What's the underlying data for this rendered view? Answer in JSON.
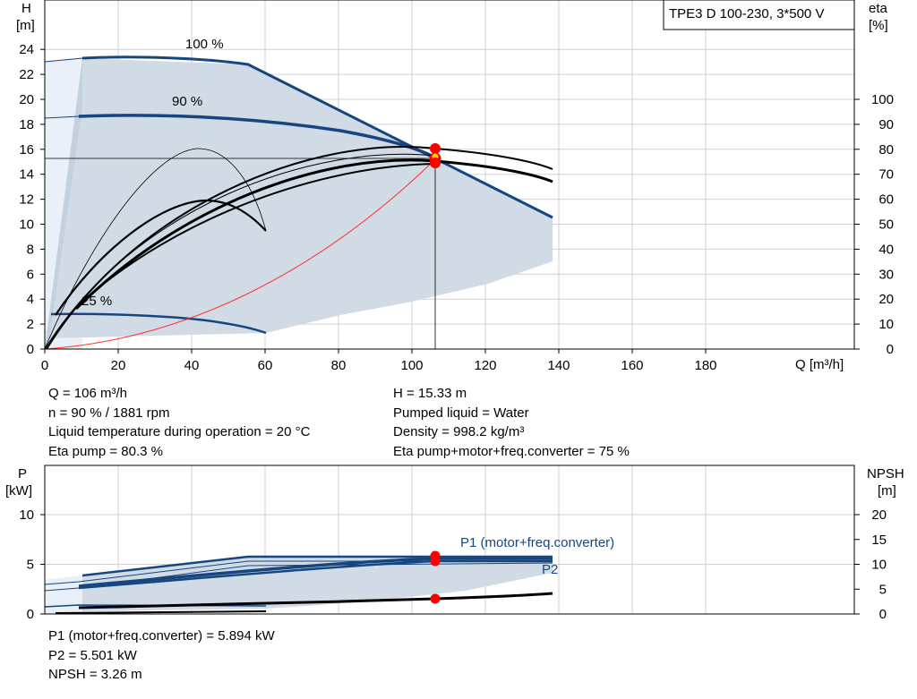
{
  "title_box": "TPE3 D 100-230, 3*500 V",
  "main_chart": {
    "y_label_lines": [
      "H",
      "[m]"
    ],
    "right_label_lines": [
      "eta",
      "[%]"
    ],
    "x_label": "Q [m³/h]",
    "x_ticks": [
      "0",
      "20",
      "40",
      "60",
      "80",
      "100",
      "120",
      "140",
      "160",
      "180"
    ],
    "y_ticks": [
      "0",
      "2",
      "4",
      "6",
      "8",
      "10",
      "12",
      "14",
      "16",
      "18",
      "20",
      "22",
      "24"
    ],
    "eta_ticks": [
      "0",
      "10",
      "20",
      "30",
      "40",
      "50",
      "60",
      "70",
      "80",
      "90",
      "100"
    ],
    "speed_labels": [
      "100 %",
      "90 %",
      "25 %"
    ]
  },
  "power_chart": {
    "y_label_lines": [
      "P",
      "[kW]"
    ],
    "right_label_lines": [
      "NPSH",
      "[m]"
    ],
    "y_ticks": [
      "0",
      "5",
      "10"
    ],
    "npsh_ticks": [
      "0",
      "5",
      "10",
      "15",
      "20"
    ],
    "series_labels": [
      "P1 (motor+freq.converter)",
      "P2"
    ]
  },
  "info_left": [
    "Q = 106 m³/h",
    "n = 90 % / 1881 rpm",
    "Liquid temperature during operation = 20 °C",
    "Eta pump = 80.3 %"
  ],
  "info_right": [
    "H = 15.33 m",
    "Pumped liquid = Water",
    "Density = 998.2 kg/m³",
    "Eta pump+motor+freq.converter = 75 %"
  ],
  "info_bottom": [
    "P1 (motor+freq.converter) = 5.894 kW",
    "P2 = 5.501 kW",
    "NPSH = 3.26 m"
  ],
  "colors": {
    "qh_curve": "#17467f",
    "envelope_fill": "#d0dbe6",
    "envelope_light": "#e9f0f7",
    "eta_curve": "#000000",
    "system_curve": "#ff3030",
    "duty_point": "#ff0000",
    "duty_point_highlight": "#ffd400",
    "grid": "#d0d0d0"
  },
  "chart_data": [
    {
      "type": "line",
      "title": "TPE3 D 100-230, 3*500 V",
      "xlabel": "Q [m³/h]",
      "ylabel": "H [m]",
      "y2label": "eta [%]",
      "xlim": [
        0,
        200
      ],
      "ylim": [
        0,
        26
      ],
      "y2lim": [
        0,
        100
      ],
      "grid": true,
      "series": [
        {
          "name": "100 %",
          "x": [
            9,
            20,
            40,
            56,
            80,
            100,
            106,
            120,
            138
          ],
          "y": [
            23.3,
            23.4,
            23.2,
            22.9,
            19.2,
            16.4,
            15.5,
            13.2,
            10.5
          ]
        },
        {
          "name": "90 %",
          "x": [
            9,
            20,
            40,
            60,
            80,
            100,
            106
          ],
          "y": [
            18.7,
            18.8,
            18.6,
            18.2,
            17.4,
            15.8,
            15.33
          ]
        },
        {
          "name": "25 %",
          "x": [
            9,
            20,
            40,
            60
          ],
          "y": [
            2.8,
            2.75,
            2.5,
            1.3
          ]
        },
        {
          "x": [
            0,
            20,
            40,
            60,
            80,
            100,
            106
          ],
          "y": [
            0,
            0.55,
            2.2,
            4.9,
            8.7,
            13.6,
            15.33
          ]
        }
      ],
      "duty_point": {
        "x": 106,
        "y": 15.33
      }
    },
    {
      "type": "line",
      "xlabel": "Q [m³/h]",
      "ylabel": "P [kW]",
      "y2label": "NPSH [m]",
      "xlim": [
        0,
        200
      ],
      "ylim": [
        0,
        12.5
      ],
      "y2lim": [
        0,
        25
      ],
      "grid": true,
      "series": [
        {
          "name": "P1 (motor+freq.converter)",
          "x": [
            9,
            56,
            106,
            138
          ],
          "y": [
            4.0,
            5.9,
            5.9,
            5.9
          ]
        },
        {
          "name": "P2",
          "x": [
            9,
            56,
            106,
            138
          ],
          "y": [
            2.9,
            4.3,
            5.5,
            5.5
          ]
        },
        {
          "name": "NPSH",
          "x": [
            9,
            56,
            106,
            138
          ],
          "y": [
            0.8,
            0.9,
            1.63,
            2.1
          ]
        }
      ],
      "duty_points": [
        {
          "series": "P1 (motor+freq.converter)",
          "x": 106,
          "y": 5.894
        },
        {
          "series": "P2",
          "x": 106,
          "y": 5.501
        },
        {
          "series": "NPSH",
          "x": 106,
          "y": 3.26
        }
      ]
    }
  ]
}
